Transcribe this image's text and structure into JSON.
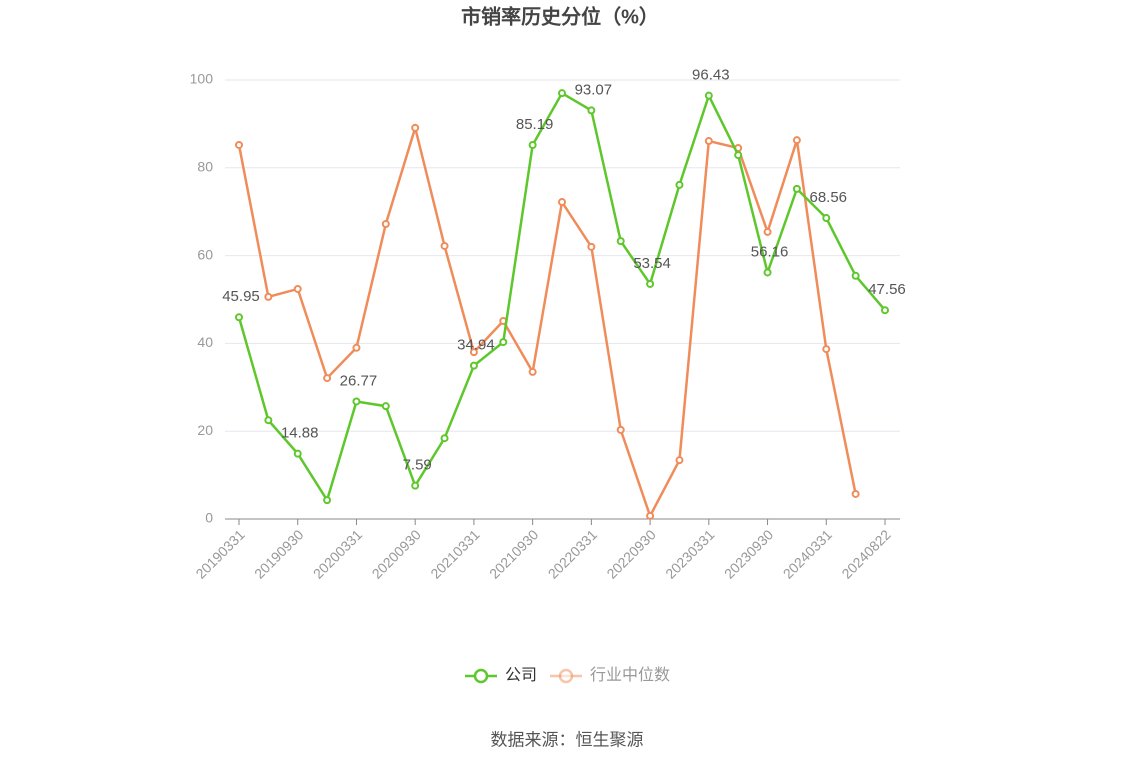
{
  "chart_data": {
    "type": "line",
    "title": "市销率历史分位（%）",
    "source": "数据来源：恒生聚源",
    "categories": [
      "20190331",
      null,
      "20190930",
      null,
      "20200331",
      null,
      "20200930",
      null,
      "20210331",
      null,
      "20210930",
      null,
      "20220331",
      null,
      "20220930",
      null,
      "20230331",
      null,
      "20230930",
      null,
      "20240331",
      null,
      "20240822"
    ],
    "series": [
      {
        "name": "公司",
        "color": "#5ec72c",
        "values": [
          45.95,
          22.5,
          14.88,
          4.3,
          26.77,
          25.7,
          7.59,
          18.4,
          34.94,
          40.3,
          85.19,
          97.0,
          93.07,
          63.3,
          53.54,
          76.1,
          96.43,
          82.9,
          56.16,
          75.2,
          68.56,
          55.4,
          47.56
        ],
        "value_labels": [
          "45.95",
          null,
          "14.88",
          null,
          "26.77",
          null,
          "7.59",
          null,
          "34.94",
          null,
          "85.19",
          null,
          "93.07",
          null,
          "53.54",
          null,
          "96.43",
          null,
          "56.16",
          null,
          "68.56",
          null,
          "47.56"
        ]
      },
      {
        "name": "行业中位数",
        "color": "#f08c5a",
        "values": [
          85.2,
          50.6,
          52.4,
          32.1,
          39.0,
          67.2,
          89.1,
          62.2,
          38.0,
          45.1,
          33.5,
          72.2,
          62.0,
          20.3,
          0.7,
          13.4,
          86.1,
          84.5,
          65.4,
          86.3,
          38.7,
          5.7,
          null
        ]
      }
    ],
    "ylim": [
      0,
      100
    ],
    "yticks": [
      0,
      20,
      40,
      60,
      80,
      100
    ],
    "grid": true
  }
}
